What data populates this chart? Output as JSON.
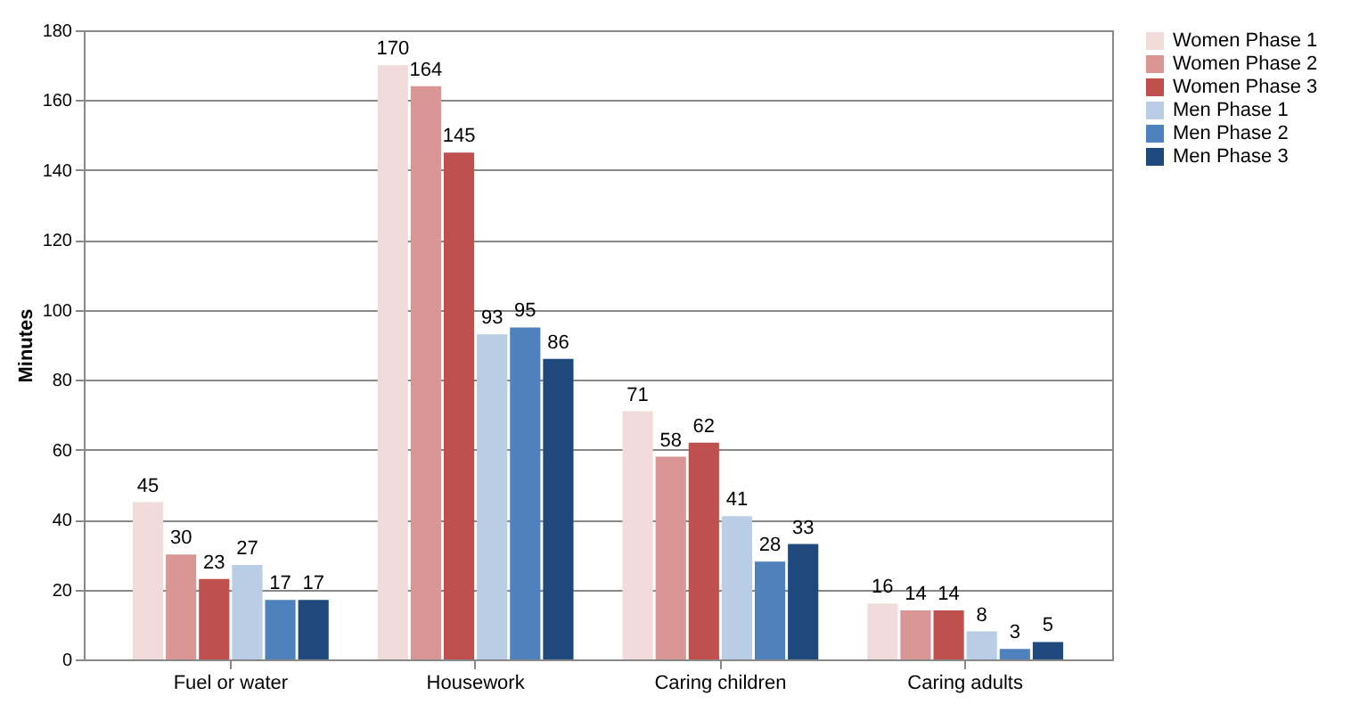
{
  "chart_data": {
    "type": "bar",
    "ylabel": "Minutes",
    "categories": [
      "Fuel or water",
      "Housework",
      "Caring children",
      "Caring adults"
    ],
    "series": [
      {
        "name": "Women Phase 1",
        "color": "#f2dcdb",
        "values": [
          45,
          170,
          71,
          16
        ]
      },
      {
        "name": "Women Phase 2",
        "color": "#d99694",
        "values": [
          30,
          164,
          58,
          14
        ]
      },
      {
        "name": "Women Phase 3",
        "color": "#c0504d",
        "values": [
          23,
          145,
          62,
          14
        ]
      },
      {
        "name": "Men Phase 1",
        "color": "#b9cde5",
        "values": [
          27,
          93,
          41,
          8
        ]
      },
      {
        "name": "Men Phase 2",
        "color": "#4f81bd",
        "values": [
          17,
          95,
          28,
          3
        ]
      },
      {
        "name": "Men Phase 3",
        "color": "#1f497d",
        "values": [
          17,
          86,
          33,
          5
        ]
      }
    ],
    "ylim": [
      0,
      180
    ],
    "yticks": [
      0,
      20,
      40,
      60,
      80,
      100,
      120,
      140,
      160,
      180
    ],
    "grid": "y",
    "legend": "right",
    "data_labels": true
  }
}
